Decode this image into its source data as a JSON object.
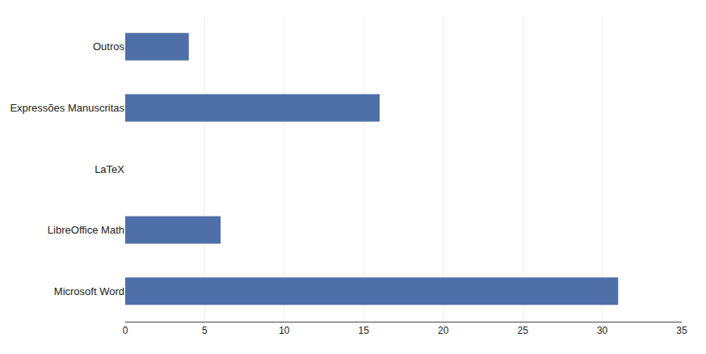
{
  "chart_data": {
    "type": "bar",
    "orientation": "horizontal",
    "categories": [
      "Microsoft Word",
      "LibreOffice Math",
      "LaTeX",
      "Expressões Manuscritas",
      "Outros"
    ],
    "values": [
      31,
      6,
      0,
      16,
      4
    ],
    "color": "#4F6FA8",
    "xlim": [
      0,
      35
    ],
    "xticks": [
      0,
      5,
      10,
      15,
      20,
      25,
      30,
      35
    ],
    "grid": true
  }
}
